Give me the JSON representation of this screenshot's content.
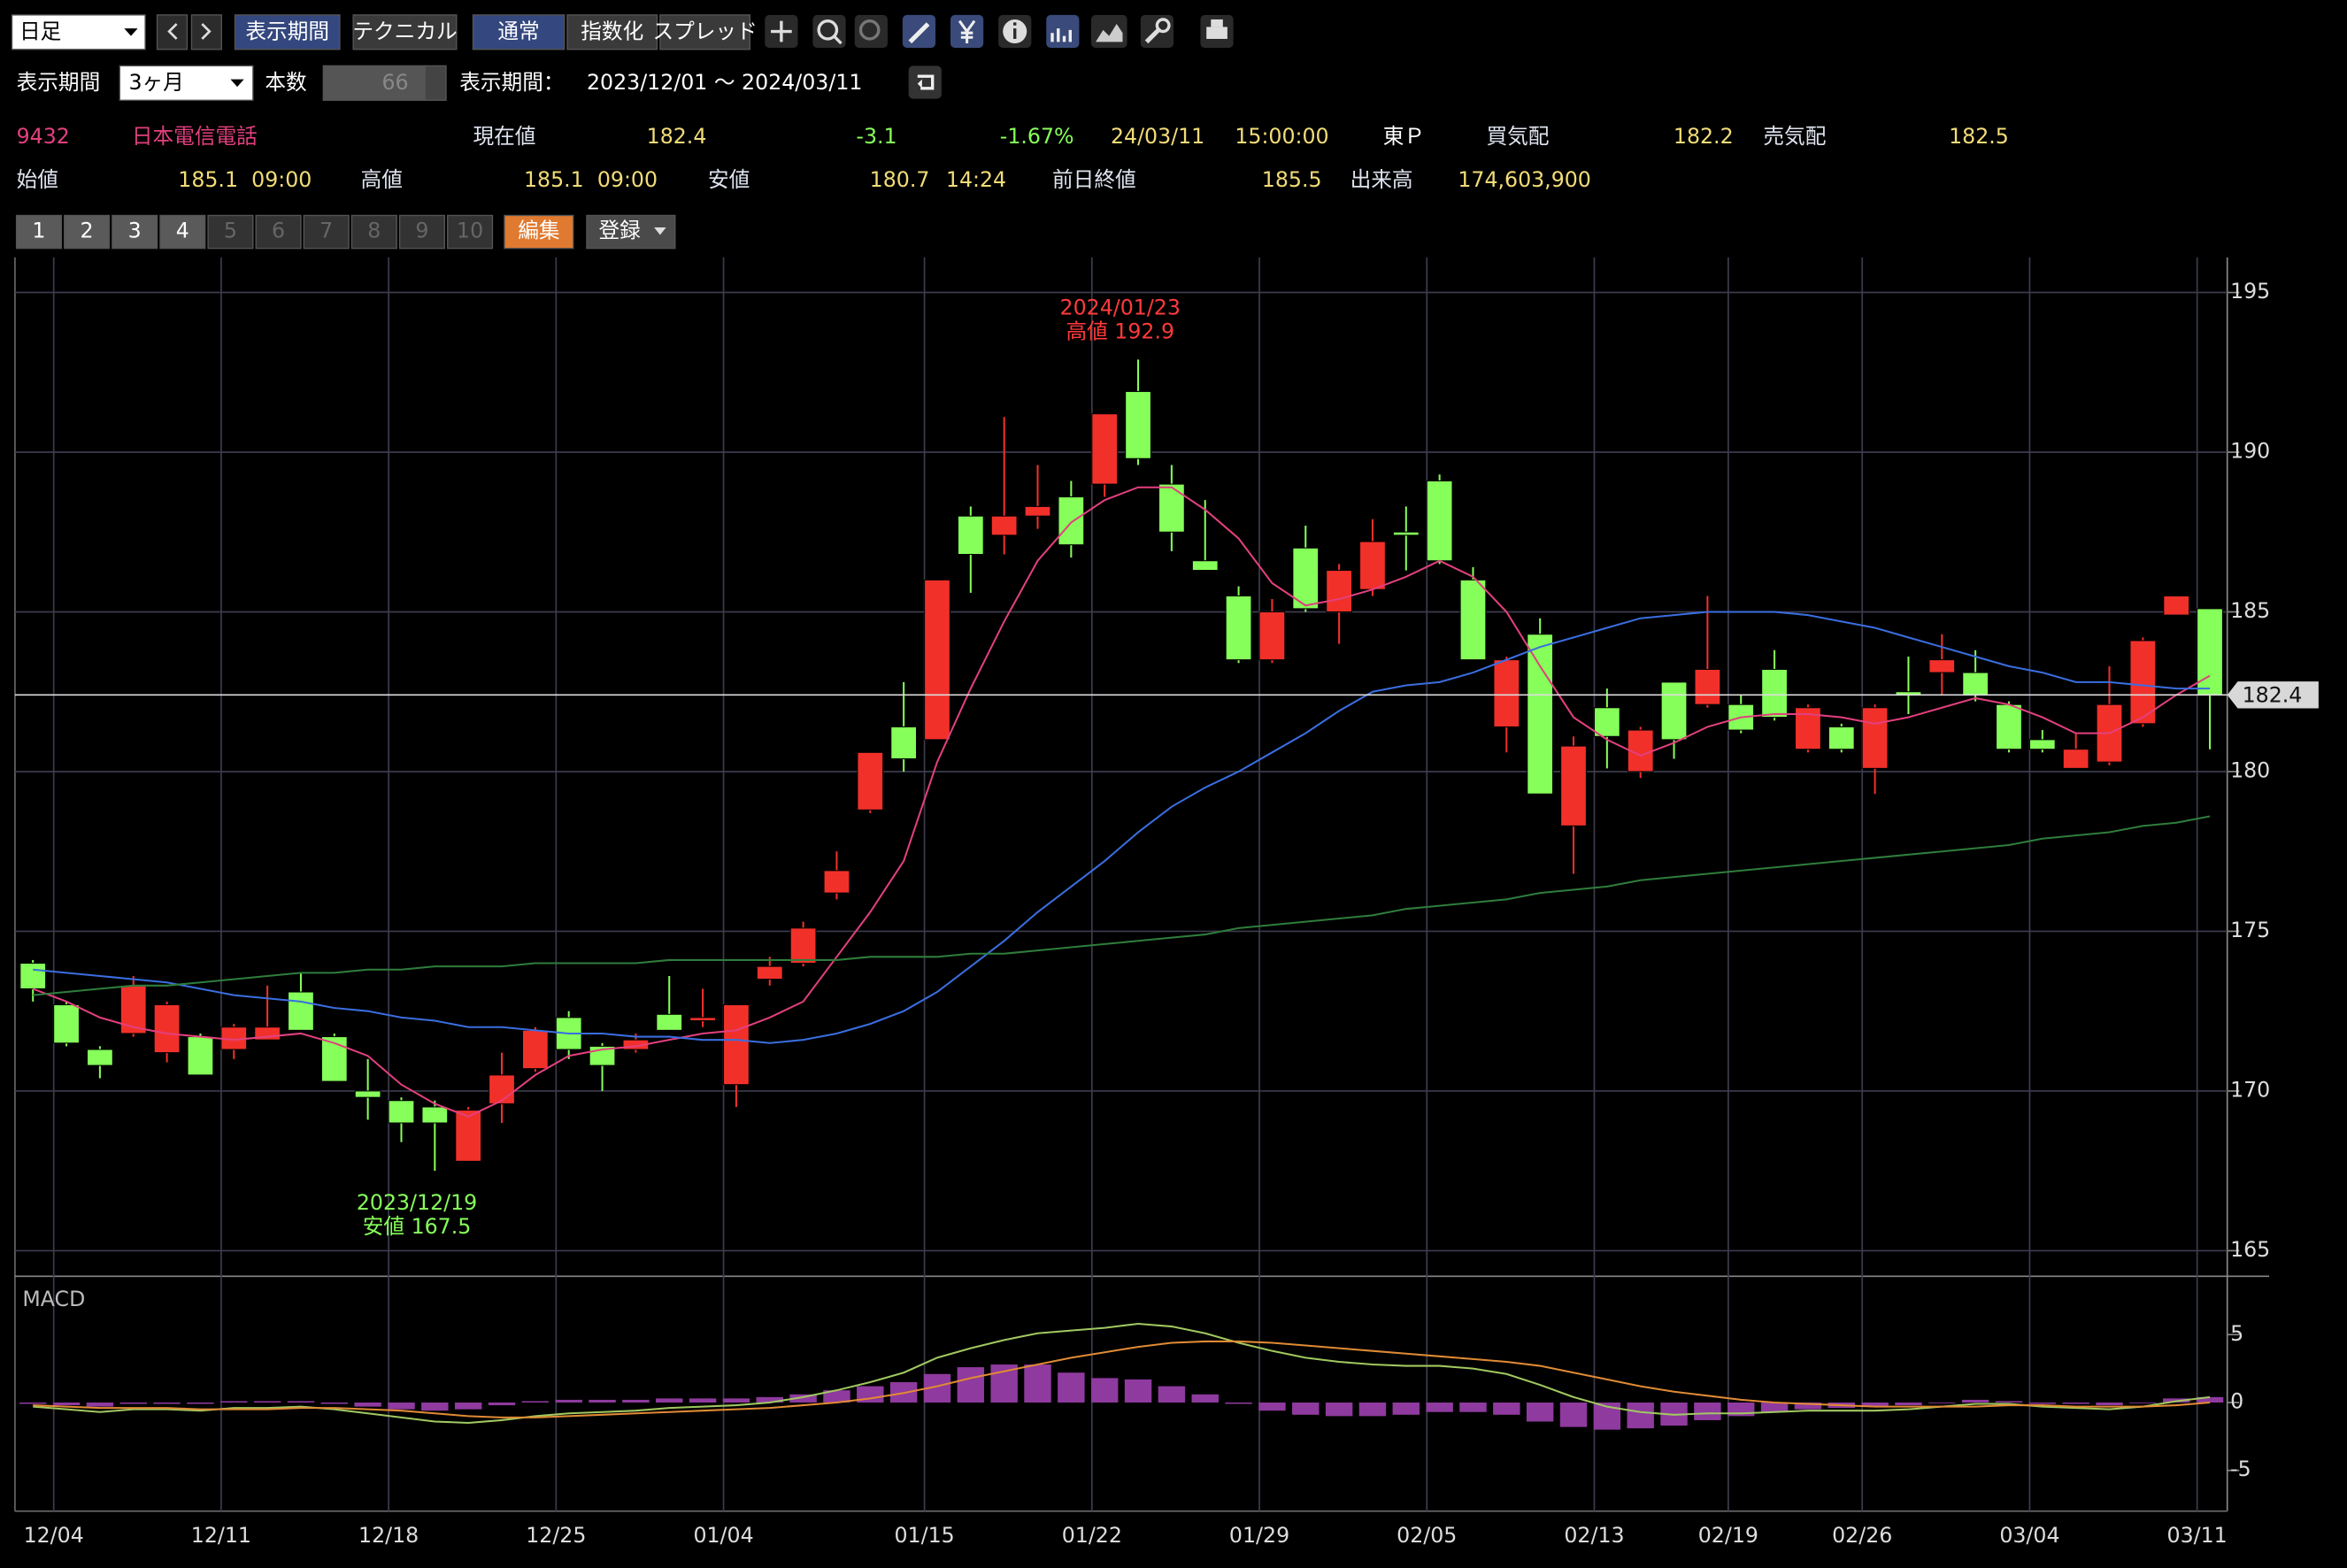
{
  "toolbar": {
    "interval": "日足",
    "buttons": [
      "表示期間",
      "テクニカル",
      "通常",
      "指数化",
      "スプレッド"
    ]
  },
  "period_bar": {
    "label": "表示期間",
    "period": "3ヶ月",
    "count_label": "本数",
    "count": "66",
    "range_label": "表示期間：",
    "range": "2023/12/01 ～ 2024/03/11"
  },
  "quote": {
    "code": "9432",
    "name": "日本電信電話",
    "price_label": "現在値",
    "price": "182.4",
    "change": "-3.1",
    "change_pct": "-1.67%",
    "date": "24/03/11",
    "time": "15:00:00",
    "market": "東Ｐ",
    "bid_label": "買気配",
    "bid": "182.2",
    "ask_label": "売気配",
    "ask": "182.5",
    "open_label": "始値",
    "open": "185.1",
    "open_time": "09:00",
    "high_label": "高値",
    "high": "185.1",
    "high_time": "09:00",
    "low_label": "安値",
    "low": "180.7",
    "low_time": "14:24",
    "prev_label": "前日終値",
    "prev_close": "185.5",
    "volume_label": "出来高",
    "volume": "174,603,900"
  },
  "tabs": [
    "1",
    "2",
    "3",
    "4",
    "5",
    "6",
    "7",
    "8",
    "9",
    "10"
  ],
  "edit": "編集",
  "register": "登録",
  "chart_data": {
    "type": "candlestick",
    "categories": [
      null,
      "12/04",
      null,
      null,
      null,
      null,
      "12/11",
      null,
      null,
      null,
      null,
      "12/18",
      null,
      null,
      null,
      null,
      "12/25",
      null,
      null,
      null,
      null,
      "01/04",
      null,
      null,
      null,
      null,
      null,
      "01/15",
      null,
      null,
      null,
      null,
      "01/22",
      null,
      null,
      null,
      null,
      "01/29",
      null,
      null,
      null,
      null,
      "02/05",
      null,
      null,
      null,
      null,
      "02/13",
      null,
      null,
      null,
      "02/19",
      null,
      null,
      null,
      "02/26",
      null,
      null,
      null,
      null,
      "03/04",
      null,
      null,
      null,
      null,
      "03/11"
    ],
    "ohlc": {
      "up_color": "#f2302a",
      "down_color": "#86ff5a",
      "open": [
        174.0,
        172.7,
        171.3,
        171.8,
        171.2,
        171.7,
        171.3,
        171.6,
        173.1,
        171.7,
        170.0,
        169.7,
        169.5,
        167.8,
        169.6,
        170.7,
        172.3,
        171.4,
        171.3,
        172.4,
        172.2,
        170.2,
        173.5,
        174.0,
        176.2,
        178.8,
        181.4,
        181.0,
        188.0,
        187.4,
        188.0,
        188.6,
        189.0,
        191.9,
        189.0,
        186.6,
        185.5,
        183.5,
        187.0,
        185.0,
        185.7,
        187.5,
        189.1,
        186.0,
        181.4,
        184.3,
        178.3,
        182.0,
        180.0,
        182.8,
        182.1,
        182.1,
        183.2,
        180.7,
        181.4,
        180.1,
        182.5,
        183.1,
        183.1,
        182.1,
        181.0,
        180.1,
        180.3,
        181.5,
        184.9,
        185.1
      ],
      "high": [
        174.1,
        172.8,
        171.4,
        173.6,
        172.8,
        171.8,
        172.1,
        173.3,
        173.7,
        171.8,
        171.0,
        169.8,
        169.7,
        169.5,
        171.2,
        172.0,
        172.5,
        171.5,
        171.8,
        173.6,
        173.2,
        172.7,
        174.2,
        175.3,
        177.5,
        180.6,
        182.8,
        186.0,
        188.3,
        191.1,
        189.6,
        189.1,
        191.2,
        192.9,
        189.6,
        188.5,
        185.8,
        185.4,
        187.7,
        186.5,
        187.9,
        188.3,
        189.3,
        186.4,
        183.6,
        184.8,
        181.1,
        182.6,
        181.4,
        182.8,
        185.5,
        182.4,
        183.8,
        182.1,
        181.5,
        182.1,
        183.6,
        184.3,
        183.8,
        182.2,
        181.3,
        181.2,
        183.3,
        184.2,
        185.5,
        185.1
      ],
      "low": [
        172.8,
        171.4,
        170.4,
        171.7,
        170.9,
        170.5,
        171.0,
        171.6,
        171.9,
        170.3,
        169.1,
        168.4,
        167.5,
        167.8,
        169.0,
        170.6,
        171.0,
        170.0,
        171.2,
        171.9,
        172.0,
        169.5,
        173.3,
        173.9,
        176.0,
        178.7,
        180.0,
        181.0,
        185.6,
        186.8,
        187.6,
        186.7,
        188.6,
        189.6,
        186.9,
        186.3,
        183.4,
        183.4,
        185.0,
        184.0,
        185.5,
        186.3,
        186.5,
        183.5,
        180.6,
        179.3,
        176.8,
        180.1,
        179.8,
        180.4,
        182.0,
        181.2,
        181.6,
        180.6,
        180.6,
        179.3,
        181.8,
        182.4,
        182.2,
        180.6,
        180.6,
        180.1,
        180.2,
        181.4,
        184.9,
        180.7
      ],
      "close": [
        173.2,
        171.5,
        170.8,
        173.3,
        172.7,
        170.5,
        172.0,
        172.0,
        171.9,
        170.3,
        169.8,
        169.0,
        169.0,
        169.4,
        170.5,
        171.9,
        171.3,
        170.8,
        171.6,
        171.9,
        172.3,
        172.7,
        173.9,
        175.1,
        176.9,
        180.6,
        180.4,
        186.0,
        186.8,
        188.0,
        188.3,
        187.1,
        191.2,
        189.8,
        187.5,
        186.3,
        183.5,
        185.0,
        185.1,
        186.3,
        187.2,
        187.4,
        186.6,
        183.5,
        183.5,
        179.3,
        180.8,
        181.1,
        181.3,
        181.0,
        183.2,
        181.3,
        181.7,
        182.0,
        180.7,
        182.0,
        182.4,
        183.5,
        182.4,
        180.7,
        180.7,
        180.7,
        182.1,
        184.1,
        185.5,
        182.4
      ]
    },
    "lines": [
      {
        "color": "#e2407e",
        "values": [
          173.2,
          172.8,
          172.3,
          172.0,
          171.8,
          171.7,
          171.6,
          171.7,
          171.8,
          171.5,
          171.1,
          170.2,
          169.6,
          169.2,
          169.7,
          170.5,
          171.1,
          171.3,
          171.4,
          171.6,
          171.8,
          171.9,
          172.3,
          172.8,
          174.2,
          175.6,
          177.2,
          180.3,
          182.6,
          184.7,
          186.6,
          187.8,
          188.5,
          188.9,
          188.9,
          188.2,
          187.3,
          185.9,
          185.2,
          185.4,
          185.7,
          186.1,
          186.6,
          186.1,
          185.0,
          183.3,
          181.7,
          181.0,
          180.5,
          180.9,
          181.4,
          181.7,
          181.8,
          181.8,
          181.7,
          181.5,
          181.7,
          182.0,
          182.3,
          182.1,
          181.7,
          181.2,
          181.2,
          181.7,
          182.4,
          183.0
        ]
      },
      {
        "color": "#3a6ee0",
        "values": [
          173.8,
          173.7,
          173.6,
          173.5,
          173.4,
          173.2,
          173.0,
          172.9,
          172.8,
          172.6,
          172.5,
          172.3,
          172.2,
          172.0,
          172.0,
          171.9,
          171.8,
          171.8,
          171.7,
          171.7,
          171.6,
          171.6,
          171.5,
          171.6,
          171.8,
          172.1,
          172.5,
          173.1,
          173.9,
          174.7,
          175.6,
          176.4,
          177.2,
          178.1,
          178.9,
          179.5,
          180.0,
          180.6,
          181.2,
          181.9,
          182.5,
          182.7,
          182.8,
          183.1,
          183.5,
          183.9,
          184.2,
          184.5,
          184.8,
          184.9,
          185.0,
          185.0,
          185.0,
          184.9,
          184.7,
          184.5,
          184.2,
          183.9,
          183.6,
          183.3,
          183.1,
          182.8,
          182.8,
          182.7,
          182.6,
          182.6
        ]
      },
      {
        "color": "#2f7d3c",
        "values": [
          173.0,
          173.1,
          173.2,
          173.3,
          173.3,
          173.4,
          173.5,
          173.6,
          173.7,
          173.7,
          173.8,
          173.8,
          173.9,
          173.9,
          173.9,
          174.0,
          174.0,
          174.0,
          174.0,
          174.1,
          174.1,
          174.1,
          174.1,
          174.1,
          174.1,
          174.2,
          174.2,
          174.2,
          174.3,
          174.3,
          174.4,
          174.5,
          174.6,
          174.7,
          174.8,
          174.9,
          175.1,
          175.2,
          175.3,
          175.4,
          175.5,
          175.7,
          175.8,
          175.9,
          176.0,
          176.2,
          176.3,
          176.4,
          176.6,
          176.7,
          176.8,
          176.9,
          177.0,
          177.1,
          177.2,
          177.3,
          177.4,
          177.5,
          177.6,
          177.7,
          177.9,
          178.0,
          178.1,
          178.3,
          178.4,
          178.6
        ]
      }
    ],
    "ylim": [
      164.2,
      196.1
    ],
    "yticks": [
      165,
      170,
      175,
      180,
      185,
      190,
      195
    ],
    "grid": true,
    "last_price": 182.4,
    "annotations": [
      {
        "date": "2024/01/23",
        "label": "高値 192.9",
        "value": 192.9,
        "color": "#ff3a3a"
      },
      {
        "date": "2023/12/19",
        "label": "安値 167.5",
        "value": 167.5,
        "color": "#86ff5a"
      }
    ],
    "macd": {
      "title": "MACD",
      "ylim": [
        -8.0,
        9.3
      ],
      "yticks": [
        5,
        0,
        -5
      ],
      "histogram": {
        "color": "#8e3a9e",
        "values": [
          -0.1,
          -0.2,
          -0.3,
          -0.1,
          -0.1,
          -0.1,
          0.1,
          0.1,
          0.1,
          -0.1,
          -0.3,
          -0.5,
          -0.6,
          -0.5,
          -0.2,
          0.1,
          0.2,
          0.2,
          0.2,
          0.3,
          0.3,
          0.3,
          0.4,
          0.6,
          0.9,
          1.2,
          1.5,
          2.1,
          2.6,
          2.8,
          2.8,
          2.2,
          1.8,
          1.7,
          1.2,
          0.6,
          -0.1,
          -0.6,
          -0.9,
          -1.0,
          -1.0,
          -0.9,
          -0.7,
          -0.7,
          -0.9,
          -1.4,
          -1.8,
          -2.0,
          -1.9,
          -1.7,
          -1.3,
          -1.0,
          -0.7,
          -0.5,
          -0.4,
          -0.3,
          -0.2,
          0.0,
          0.2,
          0.1,
          -0.1,
          -0.1,
          -0.2,
          0.0,
          0.3,
          0.4
        ]
      },
      "lines": [
        {
          "color": "#a0c860",
          "values": [
            -0.3,
            -0.5,
            -0.7,
            -0.5,
            -0.5,
            -0.6,
            -0.4,
            -0.4,
            -0.3,
            -0.5,
            -0.8,
            -1.1,
            -1.4,
            -1.5,
            -1.3,
            -1.0,
            -0.8,
            -0.7,
            -0.6,
            -0.4,
            -0.3,
            -0.2,
            0.0,
            0.4,
            0.9,
            1.5,
            2.2,
            3.3,
            4.0,
            4.6,
            5.1,
            5.3,
            5.5,
            5.8,
            5.6,
            5.1,
            4.4,
            3.8,
            3.3,
            3.0,
            2.8,
            2.7,
            2.7,
            2.5,
            2.1,
            1.3,
            0.4,
            -0.3,
            -0.7,
            -0.9,
            -0.8,
            -0.8,
            -0.7,
            -0.6,
            -0.6,
            -0.6,
            -0.5,
            -0.3,
            -0.1,
            -0.1,
            -0.3,
            -0.4,
            -0.5,
            -0.3,
            0.1,
            0.4
          ]
        },
        {
          "color": "#e08a34",
          "values": [
            -0.2,
            -0.3,
            -0.4,
            -0.4,
            -0.4,
            -0.5,
            -0.5,
            -0.5,
            -0.4,
            -0.4,
            -0.5,
            -0.6,
            -0.8,
            -1.0,
            -1.1,
            -1.1,
            -1.0,
            -0.9,
            -0.8,
            -0.7,
            -0.6,
            -0.5,
            -0.4,
            -0.2,
            0.0,
            0.3,
            0.7,
            1.2,
            1.8,
            2.3,
            2.8,
            3.3,
            3.7,
            4.1,
            4.4,
            4.5,
            4.5,
            4.4,
            4.2,
            4.0,
            3.8,
            3.6,
            3.4,
            3.2,
            3.0,
            2.7,
            2.2,
            1.7,
            1.2,
            0.8,
            0.5,
            0.2,
            0.0,
            -0.1,
            -0.2,
            -0.3,
            -0.3,
            -0.3,
            -0.3,
            -0.2,
            -0.2,
            -0.3,
            -0.3,
            -0.3,
            -0.2,
            0.0
          ]
        }
      ]
    }
  }
}
